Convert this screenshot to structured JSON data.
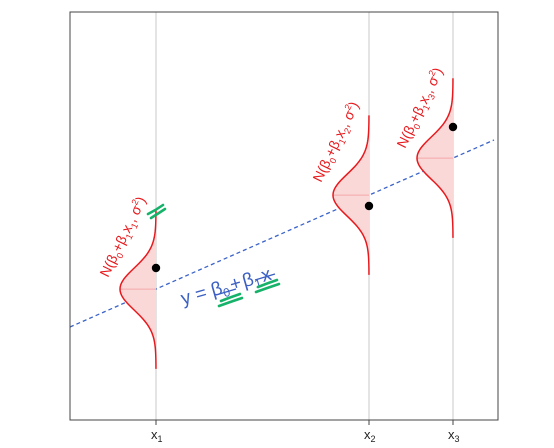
{
  "colors": {
    "curve": "#e8191d",
    "fill": "#fbd8d8",
    "mean_line": "#f3a7a7",
    "regression_line": "#3b63c8",
    "equation_text": "#3b5fc3",
    "highlight": "#17b26a",
    "point": "#000000",
    "gridline": "#c8c8c8",
    "frame": "#444444"
  },
  "chart_data": {
    "type": "scatter",
    "x_ticks": [
      {
        "base": "x",
        "sub": "1"
      },
      {
        "base": "x",
        "sub": "2"
      },
      {
        "base": "x",
        "sub": "3"
      }
    ],
    "x": [
      1,
      2,
      3
    ],
    "y": [
      2.3,
      4.0,
      4.9
    ],
    "regression_equation": {
      "lhs": "y = ",
      "beta0_symbol": "β",
      "beta0_sub": "0",
      "plus": "+",
      "beta1_symbol": "β",
      "beta1_sub": "1",
      "var": "x"
    },
    "distributions": [
      {
        "prefix": "N(β",
        "s1": "0",
        "mid1": "+β",
        "s2": "1",
        "mid2": "x",
        "s3": "1",
        "mid3": ", σ",
        "sup": "2",
        "suffix": ")"
      },
      {
        "prefix": "N(β",
        "s1": "0",
        "mid1": "+β",
        "s2": "1",
        "mid2": "x",
        "s3": "2",
        "mid3": ", σ",
        "sup": "2",
        "suffix": ")"
      },
      {
        "prefix": "N(β",
        "s1": "0",
        "mid1": "+β",
        "s2": "1",
        "mid2": "x",
        "s3": "3",
        "mid3": ", σ",
        "sup": "2",
        "suffix": ")"
      }
    ]
  }
}
